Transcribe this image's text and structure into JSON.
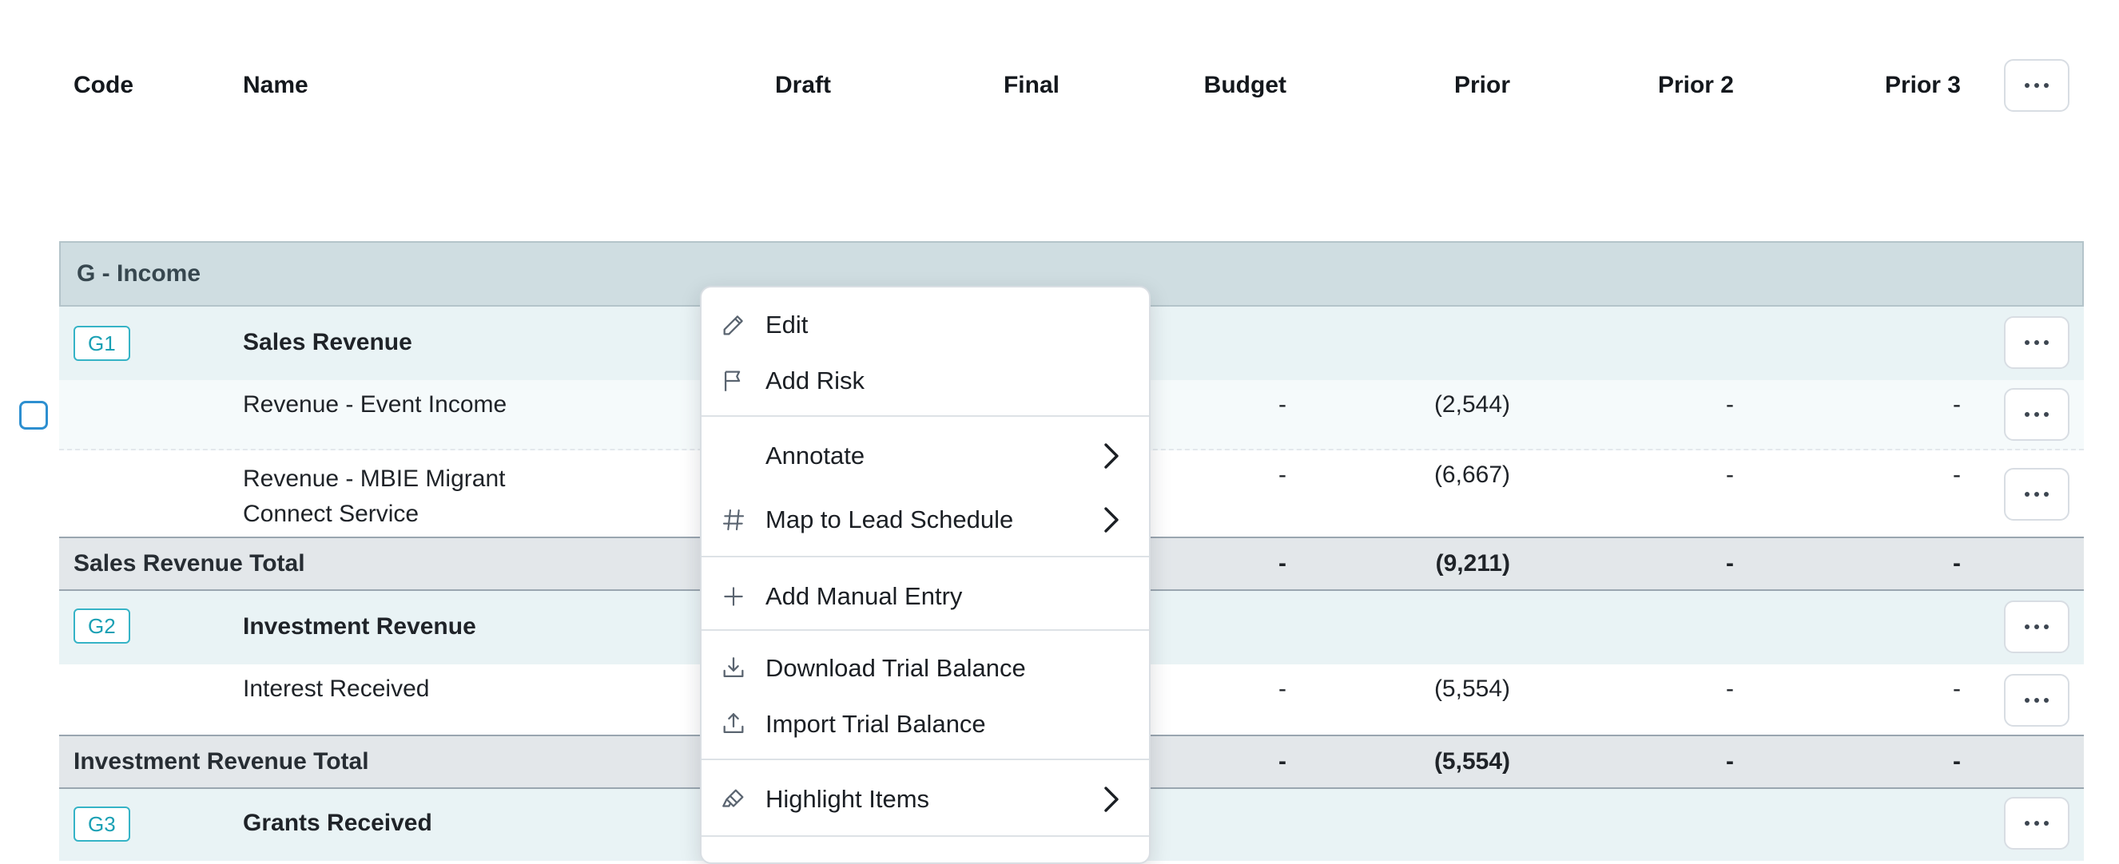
{
  "header": {
    "columns": {
      "code": "Code",
      "name": "Name",
      "draft": "Draft",
      "final": "Final",
      "budget": "Budget",
      "prior": "Prior",
      "prior2": "Prior 2",
      "prior3": "Prior 3"
    }
  },
  "section": {
    "title": "G - Income"
  },
  "rows": {
    "g1": {
      "code": "G1",
      "name": "Sales Revenue"
    },
    "event": {
      "name": "Revenue - Event Income",
      "budget": "-",
      "prior": "(2,544)",
      "prior2": "-",
      "prior3": "-"
    },
    "mbie": {
      "name_line1": "Revenue - MBIE Migrant",
      "name_line2": "Connect Service",
      "budget": "-",
      "prior": "(6,667)",
      "prior2": "-",
      "prior3": "-"
    },
    "sales_total": {
      "name": "Sales Revenue Total",
      "budget": "-",
      "prior": "(9,211)",
      "prior2": "-",
      "prior3": "-"
    },
    "g2": {
      "code": "G2",
      "name": "Investment Revenue"
    },
    "interest": {
      "name": "Interest Received",
      "budget": "-",
      "prior": "(5,554)",
      "prior2": "-",
      "prior3": "-"
    },
    "invest_total": {
      "name": "Investment Revenue Total",
      "budget": "-",
      "prior": "(5,554)",
      "prior2": "-",
      "prior3": "-"
    },
    "g3": {
      "code": "G3",
      "name": "Grants Received"
    }
  },
  "menu": {
    "edit": "Edit",
    "add_risk": "Add Risk",
    "annotate": "Annotate",
    "map_lead": "Map to Lead Schedule",
    "add_manual": "Add Manual Entry",
    "download_tb": "Download Trial Balance",
    "import_tb": "Import Trial Balance",
    "highlight": "Highlight Items"
  },
  "icons": [
    "pencil-icon",
    "flag-icon",
    "hash-icon",
    "plus-icon",
    "download-icon",
    "upload-icon",
    "highlighter-icon",
    "chevron-right-icon",
    "more-horizontal-icon"
  ],
  "colors": {
    "accent": "#1aa0b4",
    "section_bg": "#cfdde1",
    "group_bg": "#e9f3f5",
    "total_bg": "#e3e7ea"
  }
}
